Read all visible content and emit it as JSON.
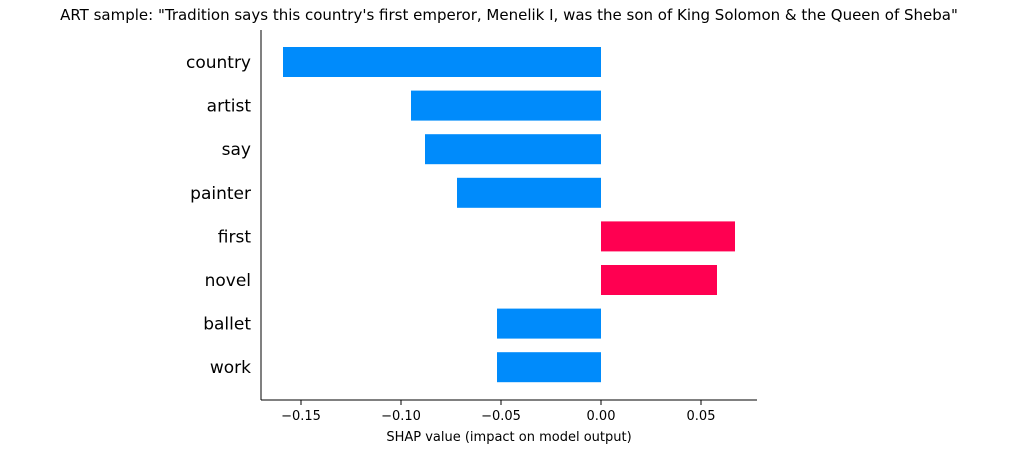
{
  "chart_data": {
    "type": "bar",
    "orientation": "horizontal",
    "title": "ART sample: \"Tradition says this country's first emperor, Menelik I, was the son of King Solomon & the Queen of Sheba\"",
    "xlabel": "SHAP value (impact on model output)",
    "ylabel": "",
    "categories": [
      "country",
      "artist",
      "say",
      "painter",
      "first",
      "novel",
      "ballet",
      "work"
    ],
    "values": [
      -0.159,
      -0.095,
      -0.088,
      -0.072,
      0.067,
      0.058,
      -0.052,
      -0.052
    ],
    "xlim": [
      -0.17,
      0.078
    ],
    "xticks": [
      -0.15,
      -0.1,
      -0.05,
      0.0,
      0.05
    ],
    "xtick_labels": [
      "−0.15",
      "−0.10",
      "−0.05",
      "0.00",
      "0.05"
    ],
    "grid": false,
    "legend": "none",
    "colors": {
      "positive": "#ff0051",
      "negative": "#008bfb",
      "axis": "#000000"
    }
  }
}
